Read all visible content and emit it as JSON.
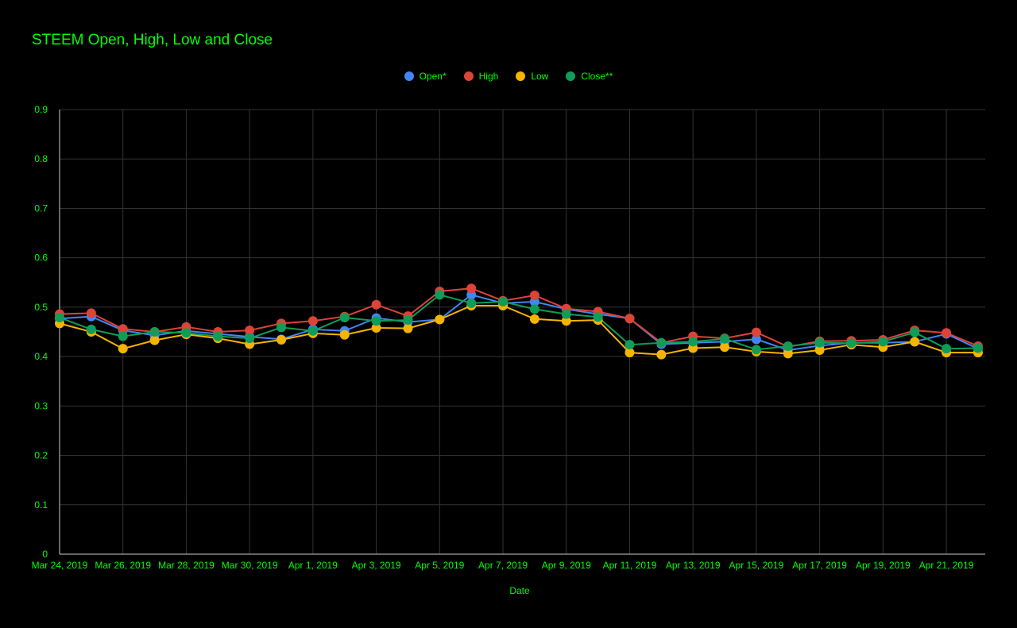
{
  "chart_data": {
    "type": "line",
    "title": "STEEM Open, High, Low and Close",
    "xlabel": "Date",
    "ylabel": "",
    "ylim": [
      0,
      0.9
    ],
    "yticks": [
      "0",
      "0.1",
      "0.2",
      "0.3",
      "0.4",
      "0.5",
      "0.6",
      "0.7",
      "0.8",
      "0.9"
    ],
    "x_tick_labels": [
      "Mar 24, 2019",
      "Mar 26, 2019",
      "Mar 28, 2019",
      "Mar 30, 2019",
      "Apr 1, 2019",
      "Apr 3, 2019",
      "Apr 5, 2019",
      "Apr 7, 2019",
      "Apr 9, 2019",
      "Apr 11, 2019",
      "Apr 13, 2019",
      "Apr 15, 2019",
      "Apr 17, 2019",
      "Apr 19, 2019",
      "Apr 21, 2019"
    ],
    "categories": [
      "Mar 24, 2019",
      "Mar 25, 2019",
      "Mar 26, 2019",
      "Mar 27, 2019",
      "Mar 28, 2019",
      "Mar 29, 2019",
      "Mar 30, 2019",
      "Mar 31, 2019",
      "Apr 1, 2019",
      "Apr 2, 2019",
      "Apr 3, 2019",
      "Apr 4, 2019",
      "Apr 5, 2019",
      "Apr 6, 2019",
      "Apr 7, 2019",
      "Apr 8, 2019",
      "Apr 9, 2019",
      "Apr 10, 2019",
      "Apr 11, 2019",
      "Apr 12, 2019",
      "Apr 13, 2019",
      "Apr 14, 2019",
      "Apr 15, 2019",
      "Apr 16, 2019",
      "Apr 17, 2019",
      "Apr 18, 2019",
      "Apr 19, 2019",
      "Apr 20, 2019",
      "Apr 21, 2019",
      "Apr 22, 2019"
    ],
    "grid": true,
    "legend_position": "top-center",
    "series": [
      {
        "name": "Open*",
        "color": "#4285f4",
        "values": [
          0.477,
          0.481,
          0.453,
          0.443,
          0.452,
          0.446,
          0.44,
          0.435,
          0.455,
          0.452,
          0.478,
          0.47,
          0.475,
          0.525,
          0.508,
          0.511,
          0.496,
          0.486,
          0.477,
          0.425,
          0.428,
          0.43,
          0.435,
          0.413,
          0.422,
          0.428,
          0.428,
          0.43,
          0.446,
          0.416
        ]
      },
      {
        "name": "High",
        "color": "#db4437",
        "values": [
          0.486,
          0.488,
          0.456,
          0.45,
          0.46,
          0.45,
          0.453,
          0.467,
          0.472,
          0.481,
          0.505,
          0.482,
          0.532,
          0.538,
          0.513,
          0.524,
          0.497,
          0.491,
          0.477,
          0.428,
          0.441,
          0.437,
          0.449,
          0.42,
          0.431,
          0.432,
          0.434,
          0.453,
          0.448,
          0.421
        ]
      },
      {
        "name": "Low",
        "color": "#f4b400",
        "values": [
          0.467,
          0.45,
          0.416,
          0.433,
          0.445,
          0.437,
          0.425,
          0.434,
          0.447,
          0.444,
          0.458,
          0.457,
          0.475,
          0.503,
          0.503,
          0.476,
          0.472,
          0.474,
          0.408,
          0.404,
          0.417,
          0.419,
          0.41,
          0.406,
          0.413,
          0.424,
          0.419,
          0.43,
          0.408,
          0.408
        ]
      },
      {
        "name": "Close**",
        "color": "#0f9d58",
        "values": [
          0.479,
          0.455,
          0.441,
          0.45,
          0.448,
          0.441,
          0.437,
          0.459,
          0.452,
          0.479,
          0.472,
          0.474,
          0.525,
          0.508,
          0.511,
          0.496,
          0.486,
          0.48,
          0.424,
          0.428,
          0.43,
          0.436,
          0.414,
          0.421,
          0.428,
          0.427,
          0.43,
          0.449,
          0.416,
          0.417
        ]
      }
    ]
  }
}
